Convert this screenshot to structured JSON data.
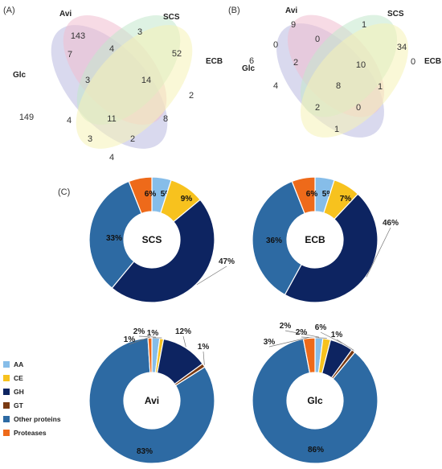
{
  "panel_labels": {
    "a": "(A)",
    "b": "(B)",
    "c": "(C)"
  },
  "chart_data": [
    {
      "type": "venn",
      "panel": "(A)",
      "sets": [
        "Glc",
        "Avi",
        "SCS",
        "ECB"
      ],
      "regions": [
        {
          "sets": [
            "Glc"
          ],
          "value": 149
        },
        {
          "sets": [
            "Avi"
          ],
          "value": 143
        },
        {
          "sets": [
            "SCS"
          ],
          "value": 3
        },
        {
          "sets": [
            "ECB"
          ],
          "value": 2
        },
        {
          "sets": [
            "Glc",
            "Avi"
          ],
          "value": 7
        },
        {
          "sets": [
            "Avi",
            "SCS"
          ],
          "value": 4
        },
        {
          "sets": [
            "SCS",
            "ECB"
          ],
          "value": 52
        },
        {
          "sets": [
            "Glc",
            "SCS"
          ],
          "value": 4
        },
        {
          "sets": [
            "Avi",
            "ECB"
          ],
          "value": 8
        },
        {
          "sets": [
            "Glc",
            "ECB"
          ],
          "value": 4
        },
        {
          "sets": [
            "Glc",
            "Avi",
            "SCS"
          ],
          "value": 3
        },
        {
          "sets": [
            "Avi",
            "SCS",
            "ECB"
          ],
          "value": 14
        },
        {
          "sets": [
            "Glc",
            "SCS",
            "ECB"
          ],
          "value": 3
        },
        {
          "sets": [
            "Glc",
            "Avi",
            "ECB"
          ],
          "value": 2
        },
        {
          "sets": [
            "Glc",
            "Avi",
            "SCS",
            "ECB"
          ],
          "value": 11
        }
      ]
    },
    {
      "type": "venn",
      "panel": "(B)",
      "sets": [
        "Glc",
        "Avi",
        "SCS",
        "ECB"
      ],
      "regions": [
        {
          "sets": [
            "Glc"
          ],
          "value": 6
        },
        {
          "sets": [
            "Avi"
          ],
          "value": 9
        },
        {
          "sets": [
            "SCS"
          ],
          "value": 1
        },
        {
          "sets": [
            "ECB"
          ],
          "value": 0
        },
        {
          "sets": [
            "Glc",
            "Avi"
          ],
          "value": 0
        },
        {
          "sets": [
            "Avi",
            "SCS"
          ],
          "value": 0
        },
        {
          "sets": [
            "SCS",
            "ECB"
          ],
          "value": 34
        },
        {
          "sets": [
            "Glc",
            "SCS"
          ],
          "value": 4
        },
        {
          "sets": [
            "Avi",
            "ECB"
          ],
          "value": 1
        },
        {
          "sets": [
            "Glc",
            "ECB"
          ],
          "value": 1
        },
        {
          "sets": [
            "Glc",
            "Avi",
            "SCS"
          ],
          "value": 2
        },
        {
          "sets": [
            "Avi",
            "SCS",
            "ECB"
          ],
          "value": 10
        },
        {
          "sets": [
            "Glc",
            "SCS",
            "ECB"
          ],
          "value": 2
        },
        {
          "sets": [
            "Glc",
            "Avi",
            "ECB"
          ],
          "value": 0
        },
        {
          "sets": [
            "Glc",
            "Avi",
            "SCS",
            "ECB"
          ],
          "value": 8
        }
      ]
    },
    {
      "type": "pie",
      "panel": "(C)",
      "center_label": "SCS",
      "slices": [
        {
          "category": "AA",
          "value": 5,
          "label": "5%"
        },
        {
          "category": "CE",
          "value": 9,
          "label": "9%"
        },
        {
          "category": "GH",
          "value": 47,
          "label": "47%"
        },
        {
          "category": "Other proteins",
          "value": 33,
          "label": "33%"
        },
        {
          "category": "Proteases",
          "value": 6,
          "label": "6%"
        }
      ]
    },
    {
      "type": "pie",
      "panel": "(C)",
      "center_label": "ECB",
      "slices": [
        {
          "category": "AA",
          "value": 5,
          "label": "5%"
        },
        {
          "category": "CE",
          "value": 7,
          "label": "7%"
        },
        {
          "category": "GH",
          "value": 46,
          "label": "46%"
        },
        {
          "category": "Other proteins",
          "value": 36,
          "label": "36%"
        },
        {
          "category": "Proteases",
          "value": 6,
          "label": "6%"
        }
      ]
    },
    {
      "type": "pie",
      "panel": "(C)",
      "center_label": "Avi",
      "slices": [
        {
          "category": "AA",
          "value": 2,
          "label": "2%"
        },
        {
          "category": "CE",
          "value": 1,
          "label": "1%"
        },
        {
          "category": "GH",
          "value": 12,
          "label": "12%"
        },
        {
          "category": "GT",
          "value": 1,
          "label": "1%"
        },
        {
          "category": "Other proteins",
          "value": 83,
          "label": "83%"
        },
        {
          "category": "Proteases",
          "value": 1,
          "label": "1%"
        }
      ]
    },
    {
      "type": "pie",
      "panel": "(C)",
      "center_label": "Glc",
      "slices": [
        {
          "category": "AA",
          "value": 2,
          "label": "2%"
        },
        {
          "category": "CE",
          "value": 2,
          "label": "2%"
        },
        {
          "category": "GH",
          "value": 6,
          "label": "6%"
        },
        {
          "category": "GT",
          "value": 1,
          "label": "1%"
        },
        {
          "category": "Other proteins",
          "value": 86,
          "label": "86%"
        },
        {
          "category": "Proteases",
          "value": 3,
          "label": "3%"
        }
      ]
    }
  ],
  "legend": [
    {
      "name": "AA",
      "color": "#86bde9"
    },
    {
      "name": "CE",
      "color": "#f7c21e"
    },
    {
      "name": "GH",
      "color": "#0d2461"
    },
    {
      "name": "GT",
      "color": "#7a3a12"
    },
    {
      "name": "Other proteins",
      "color": "#2d6aa3"
    },
    {
      "name": "Proteases",
      "color": "#ee6a1a"
    }
  ],
  "venn_colors": {
    "Glc": "#b9b9e0",
    "Avi": "#f0bdd0",
    "SCS": "#c2e8cc",
    "ECB": "#f6f3b6"
  }
}
